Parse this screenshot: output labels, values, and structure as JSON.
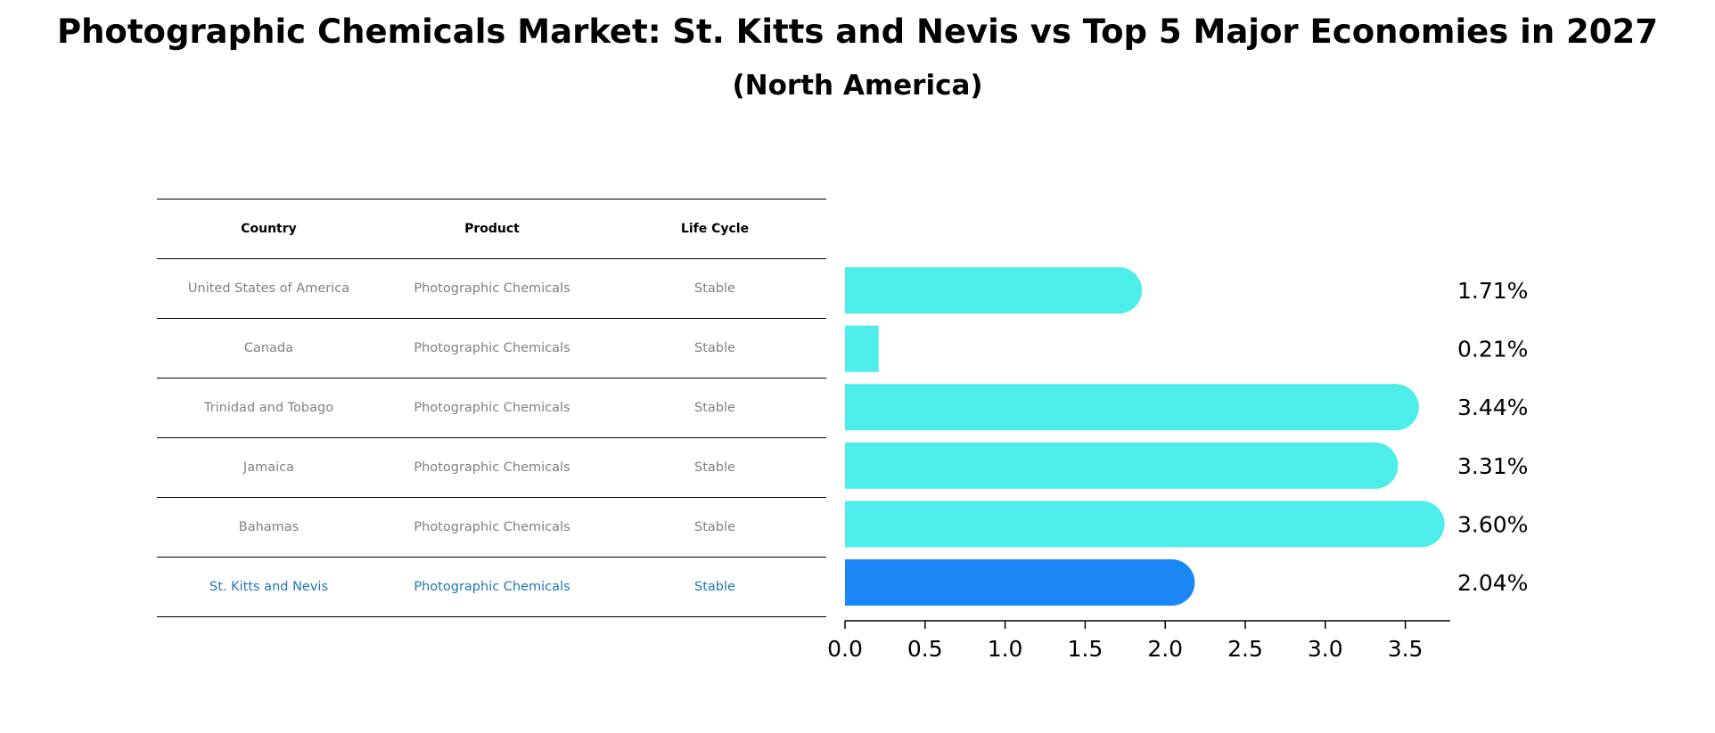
{
  "title": "Photographic Chemicals Market: St. Kitts and Nevis vs Top 5 Major Economies in 2027",
  "subtitle": "(North America)",
  "table": {
    "headers": [
      "Country",
      "Product",
      "Life Cycle"
    ],
    "rows": [
      {
        "country": "United States of America",
        "product": "Photographic Chemicals",
        "life_cycle": "Stable"
      },
      {
        "country": "Canada",
        "product": "Photographic Chemicals",
        "life_cycle": "Stable"
      },
      {
        "country": "Trinidad and Tobago",
        "product": "Photographic Chemicals",
        "life_cycle": "Stable"
      },
      {
        "country": "Jamaica",
        "product": "Photographic Chemicals",
        "life_cycle": "Stable"
      },
      {
        "country": "Bahamas",
        "product": "Photographic Chemicals",
        "life_cycle": "Stable"
      },
      {
        "country": "St. Kitts and Nevis",
        "product": "Photographic Chemicals",
        "life_cycle": "Stable"
      }
    ]
  },
  "colors": {
    "bar": "#4deeea",
    "highlight_bar": "#1a87f5",
    "highlight_text": "#1f77b4",
    "muted_text": "#808080"
  },
  "chart_data": {
    "type": "bar",
    "orientation": "horizontal",
    "categories": [
      "United States of America",
      "Canada",
      "Trinidad and Tobago",
      "Jamaica",
      "Bahamas",
      "St. Kitts and Nevis"
    ],
    "values": [
      1.71,
      0.21,
      3.44,
      3.31,
      3.6,
      2.04
    ],
    "value_labels": [
      "1.71%",
      "0.21%",
      "3.44%",
      "3.31%",
      "3.60%",
      "2.04%"
    ],
    "highlight_index": 5,
    "xlim": [
      0,
      3.78
    ],
    "xticks": [
      0.0,
      0.5,
      1.0,
      1.5,
      2.0,
      2.5,
      3.0,
      3.5
    ],
    "xtick_labels": [
      "0.0",
      "0.5",
      "1.0",
      "1.5",
      "2.0",
      "2.5",
      "3.0",
      "3.5"
    ],
    "xlabel": "",
    "ylabel": "",
    "grid": false
  }
}
